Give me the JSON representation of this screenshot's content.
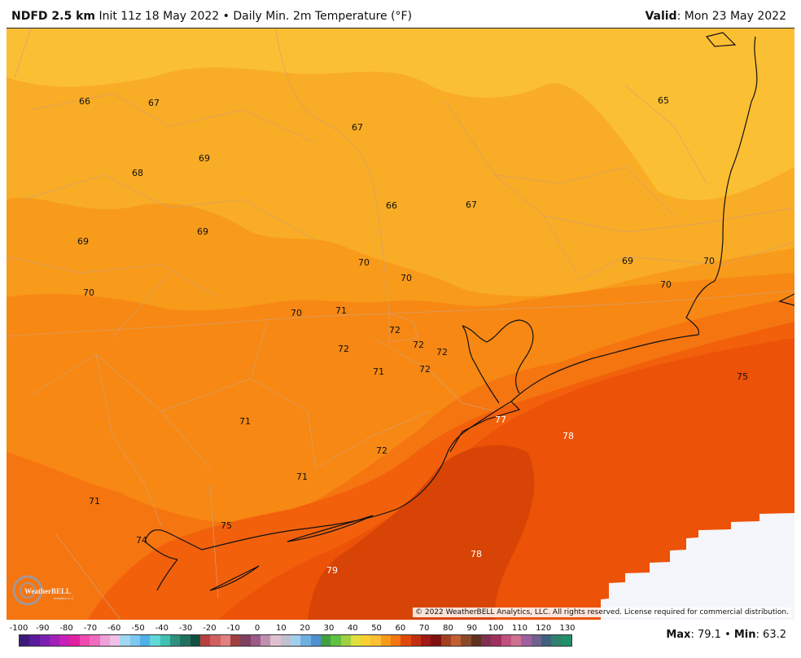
{
  "header": {
    "product": "NDFD 2.5 km",
    "init": "Init 11z 18 May 2022",
    "separator": "•",
    "field": "Daily Min. 2m Temperature (°F)",
    "valid_label": "Valid",
    "valid_value": ": Mon 23 May 2022"
  },
  "map": {
    "copyright": "© 2022 WeatherBELL Analytics, LLC. All rights reserved. License required for commercial distribution.",
    "logo_text": "WeatherBELL",
    "logo_subtext": "Analytics LLC",
    "colors": {
      "t65": "#fbbf34",
      "t67": "#f9ac25",
      "t69": "#f89a1a",
      "t71": "#f78813",
      "t73": "#f57510",
      "t75": "#f2600c",
      "t77": "#ec5208",
      "t79": "#d84406",
      "nodata": "#f4f6fb",
      "boundary": "#d4a070",
      "coast": "#111111"
    },
    "temperature_labels": [
      {
        "text": "66",
        "light": false
      },
      {
        "text": "67",
        "light": false
      },
      {
        "text": "67",
        "light": false
      },
      {
        "text": "65",
        "light": false
      },
      {
        "text": "69",
        "light": false
      },
      {
        "text": "68",
        "light": false
      },
      {
        "text": "66",
        "light": false
      },
      {
        "text": "67",
        "light": false
      },
      {
        "text": "69",
        "light": false
      },
      {
        "text": "69",
        "light": false
      },
      {
        "text": "70",
        "light": false
      },
      {
        "text": "70",
        "light": false
      },
      {
        "text": "69",
        "light": false
      },
      {
        "text": "70",
        "light": false
      },
      {
        "text": "70",
        "light": false
      },
      {
        "text": "70",
        "light": false
      },
      {
        "text": "70",
        "light": false
      },
      {
        "text": "71",
        "light": false
      },
      {
        "text": "72",
        "light": false
      },
      {
        "text": "72",
        "light": false
      },
      {
        "text": "72",
        "light": false
      },
      {
        "text": "72",
        "light": false
      },
      {
        "text": "71",
        "light": false
      },
      {
        "text": "72",
        "light": false
      },
      {
        "text": "75",
        "light": false
      },
      {
        "text": "71",
        "light": false
      },
      {
        "text": "77",
        "light": true
      },
      {
        "text": "78",
        "light": true
      },
      {
        "text": "72",
        "light": false
      },
      {
        "text": "71",
        "light": false
      },
      {
        "text": "71",
        "light": false
      },
      {
        "text": "75",
        "light": false
      },
      {
        "text": "74",
        "light": false
      },
      {
        "text": "78",
        "light": true
      },
      {
        "text": "79",
        "light": true
      }
    ]
  },
  "legend": {
    "ticks": [
      "-100",
      "-90",
      "-80",
      "-70",
      "-60",
      "-50",
      "-40",
      "-30",
      "-20",
      "-10",
      "0",
      "10",
      "20",
      "30",
      "40",
      "50",
      "60",
      "70",
      "80",
      "90",
      "100",
      "110",
      "120",
      "130"
    ],
    "colors": [
      "#3b1a7a",
      "#5a1c9a",
      "#7a1fb0",
      "#a020b8",
      "#c81fb8",
      "#e020a0",
      "#f04ab0",
      "#f06cc0",
      "#f0a0d8",
      "#f0c0e8",
      "#9fd8f0",
      "#7cc8f0",
      "#50b0e8",
      "#60d8d8",
      "#40c0b0",
      "#309080",
      "#207060",
      "#105040",
      "#b84040",
      "#d06060",
      "#e08080",
      "#a04040",
      "#804060",
      "#9a5a8a",
      "#c090b0",
      "#e0c0d0",
      "#c0c0d0",
      "#a0d0f0",
      "#70b0e0",
      "#5090d0",
      "#40a040",
      "#60c040",
      "#a0d040",
      "#e0e040",
      "#f8d030",
      "#fbbf34",
      "#f89a1a",
      "#f57510",
      "#e04a08",
      "#c03010",
      "#a01818",
      "#801010",
      "#a04020",
      "#c06030",
      "#8a4a2a",
      "#603020",
      "#803050",
      "#a03060",
      "#c05080",
      "#d07090",
      "#a060a0",
      "#706090",
      "#406080",
      "#308070",
      "#20906a"
    ],
    "max_label": "Max",
    "max_value": ": 79.1",
    "separator": "•",
    "min_label": "Min",
    "min_value": ": 63.2"
  }
}
